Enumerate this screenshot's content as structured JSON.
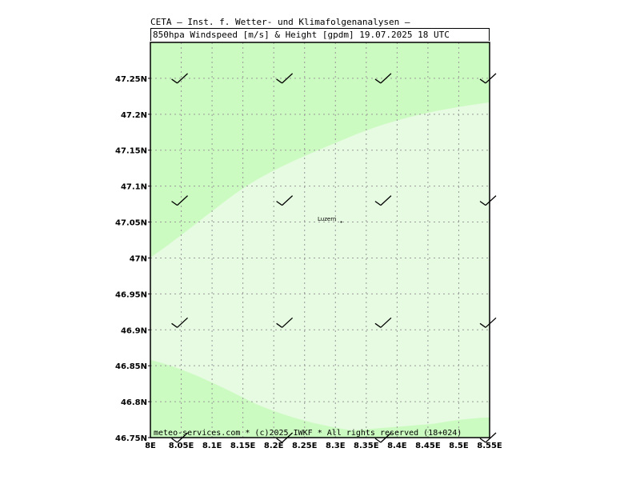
{
  "header": {
    "line1": "CETA – Inst. f. Wetter- und Klimafolgenanalysen –",
    "line2": "850hpa Windspeed [m/s] & Height [gpdm] 19.07.2025 18 UTC"
  },
  "footer": "meteo-services.com * (c)2025 IWKF * All rights reserved (18+024)",
  "map": {
    "lon_range": [
      8.0,
      8.55
    ],
    "lat_range": [
      46.75,
      47.3
    ],
    "x_ticks": [
      "8E",
      "8.05E",
      "8.1E",
      "8.15E",
      "8.2E",
      "8.25E",
      "8.3E",
      "8.35E",
      "8.4E",
      "8.45E",
      "8.5E",
      "8.55E"
    ],
    "y_ticks": [
      "47.25N",
      "47.2N",
      "47.15N",
      "47.1N",
      "47.05N",
      "47N",
      "46.95N",
      "46.9N",
      "46.85N",
      "46.8N",
      "46.75N"
    ],
    "city": {
      "name": "Luzern",
      "lon": 8.31,
      "lat": 47.05
    },
    "colors": {
      "light": "#e6fbe1",
      "medium": "#cbfbc0",
      "grid": "#999999"
    },
    "barbs": [
      {
        "lon": 8.05,
        "lat": 47.25
      },
      {
        "lon": 8.22,
        "lat": 47.25
      },
      {
        "lon": 8.38,
        "lat": 47.25
      },
      {
        "lon": 8.55,
        "lat": 47.25
      },
      {
        "lon": 8.05,
        "lat": 47.08
      },
      {
        "lon": 8.22,
        "lat": 47.08
      },
      {
        "lon": 8.38,
        "lat": 47.08
      },
      {
        "lon": 8.55,
        "lat": 47.08
      },
      {
        "lon": 8.05,
        "lat": 46.91
      },
      {
        "lon": 8.22,
        "lat": 46.91
      },
      {
        "lon": 8.38,
        "lat": 46.91
      },
      {
        "lon": 8.55,
        "lat": 46.91
      },
      {
        "lon": 8.05,
        "lat": 46.75
      },
      {
        "lon": 8.22,
        "lat": 46.75
      },
      {
        "lon": 8.38,
        "lat": 46.75
      },
      {
        "lon": 8.55,
        "lat": 46.75
      }
    ]
  }
}
